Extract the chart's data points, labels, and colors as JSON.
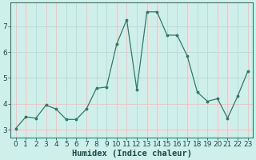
{
  "x": [
    0,
    1,
    2,
    3,
    4,
    5,
    6,
    7,
    8,
    9,
    10,
    11,
    12,
    13,
    14,
    15,
    16,
    17,
    18,
    19,
    20,
    21,
    22,
    23
  ],
  "y": [
    3.05,
    3.5,
    3.45,
    3.95,
    3.8,
    3.4,
    3.4,
    3.8,
    4.6,
    4.65,
    6.3,
    7.25,
    4.55,
    7.55,
    7.55,
    6.65,
    6.65,
    5.85,
    4.45,
    4.1,
    4.2,
    3.45,
    4.3,
    5.25
  ],
  "bg_color": "#cff0ea",
  "grid_color": "#e8c8c8",
  "line_color": "#2d7a6a",
  "marker_color": "#2d7a6a",
  "xlabel": "Humidex (Indice chaleur)",
  "ylim": [
    2.7,
    7.9
  ],
  "xlim": [
    -0.5,
    23.5
  ],
  "yticks": [
    3,
    4,
    5,
    6,
    7
  ],
  "xticks": [
    0,
    1,
    2,
    3,
    4,
    5,
    6,
    7,
    8,
    9,
    10,
    11,
    12,
    13,
    14,
    15,
    16,
    17,
    18,
    19,
    20,
    21,
    22,
    23
  ],
  "xlabel_color": "#1a4a4a",
  "tick_color": "#1a4a4a",
  "axis_color": "#2d7a6a",
  "font_size_xlabel": 7.5,
  "font_size_ticks": 6.5
}
